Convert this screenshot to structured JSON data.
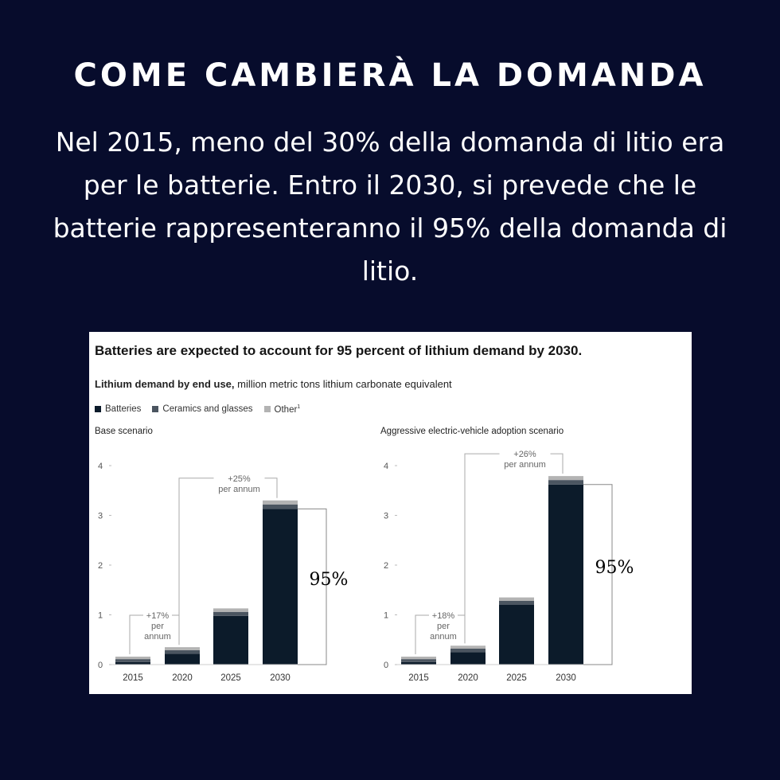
{
  "page": {
    "headline": "COME CAMBIERÀ LA DOMANDA",
    "intro": "Nel 2015, meno del 30% della domanda di litio era per le batterie. Entro il 2030, si prevede che le batterie rappresenteranno il 95% della domanda di litio.",
    "background_color": "#070c2c"
  },
  "card": {
    "title": "Batteries are expected to account for 95 percent of lithium demand by 2030.",
    "subtitle_bold": "Lithium demand by end use,",
    "subtitle_rest": " million metric tons lithium carbonate equivalent",
    "legend": [
      {
        "label": "Batteries",
        "sup": "",
        "color": "#0c1b2a"
      },
      {
        "label": "Ceramics and glasses",
        "sup": "",
        "color": "#4b5560"
      },
      {
        "label": "Other",
        "sup": "1",
        "color": "#b3b3b3"
      }
    ]
  },
  "chart_data": [
    {
      "type": "bar",
      "stacked": true,
      "panel_title": "Base scenario",
      "categories": [
        "2015",
        "2020",
        "2025",
        "2030"
      ],
      "series": [
        {
          "name": "Batteries",
          "values": [
            0.05,
            0.22,
            0.98,
            3.13
          ],
          "color": "#0c1b2a"
        },
        {
          "name": "Ceramics and glasses",
          "values": [
            0.06,
            0.07,
            0.08,
            0.09
          ],
          "color": "#4b5560"
        },
        {
          "name": "Other",
          "values": [
            0.05,
            0.06,
            0.07,
            0.08
          ],
          "color": "#b3b3b3"
        }
      ],
      "ylim": [
        0,
        4
      ],
      "yticks": [
        "0",
        "1",
        "2",
        "3",
        "4"
      ],
      "annotations": [
        {
          "text_lines": [
            "+17%",
            "per",
            "annum"
          ],
          "from": "2015",
          "to": "2020"
        },
        {
          "text_lines": [
            "+25%",
            "per annum"
          ],
          "from": "2020",
          "to": "2030"
        }
      ],
      "share_label": "95%"
    },
    {
      "type": "bar",
      "stacked": true,
      "panel_title": "Aggressive electric-vehicle adoption scenario",
      "categories": [
        "2015",
        "2020",
        "2025",
        "2030"
      ],
      "series": [
        {
          "name": "Batteries",
          "values": [
            0.05,
            0.25,
            1.2,
            3.62
          ],
          "color": "#0c1b2a"
        },
        {
          "name": "Ceramics and glasses",
          "values": [
            0.06,
            0.07,
            0.08,
            0.09
          ],
          "color": "#4b5560"
        },
        {
          "name": "Other",
          "values": [
            0.05,
            0.06,
            0.07,
            0.08
          ],
          "color": "#b3b3b3"
        }
      ],
      "ylim": [
        0,
        4
      ],
      "yticks": [
        "0",
        "1",
        "2",
        "3",
        "4"
      ],
      "annotations": [
        {
          "text_lines": [
            "+18%",
            "per",
            "annum"
          ],
          "from": "2015",
          "to": "2020"
        },
        {
          "text_lines": [
            "+26%",
            "per annum"
          ],
          "from": "2020",
          "to": "2030"
        }
      ],
      "share_label": "95%"
    }
  ]
}
